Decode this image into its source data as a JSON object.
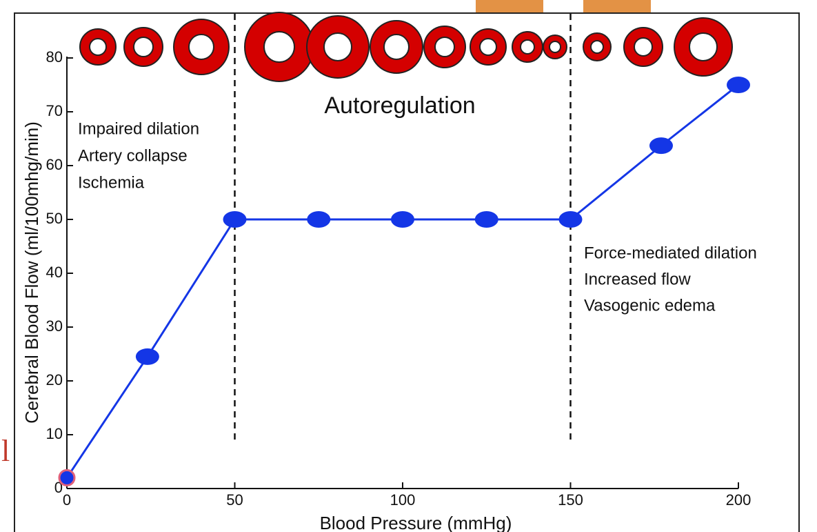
{
  "chart_data": {
    "type": "line",
    "x": [
      0,
      24,
      50,
      75,
      100,
      125,
      150,
      177,
      200
    ],
    "values": [
      2,
      24.5,
      50,
      50,
      50,
      50,
      50,
      63.7,
      75
    ],
    "color": "#1436e6",
    "xlim": [
      0,
      200
    ],
    "xticks": [
      0,
      50,
      100,
      150,
      200
    ],
    "ylim": [
      0,
      80
    ],
    "yticks": [
      0,
      10,
      20,
      30,
      40,
      50,
      60,
      70,
      80
    ],
    "xlabel": "Blood Pressure (mmHg)",
    "ylabel": "Cerebral Blood Flow (ml/100mhg/min)",
    "reference_lines": [
      50,
      150
    ],
    "annotations": {
      "center": "Autoregulation",
      "left": [
        "Impaired dilation",
        "Artery collapse",
        "Ischemia"
      ],
      "right": [
        "Force-mediated dilation",
        "Increased flow",
        "Vasogenic edema"
      ]
    }
  },
  "slide_fragment": "l"
}
